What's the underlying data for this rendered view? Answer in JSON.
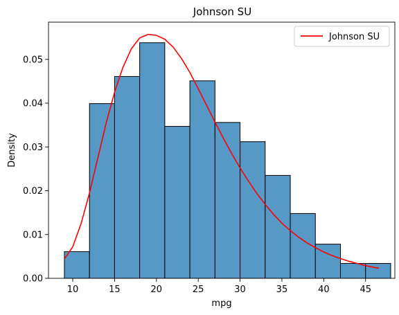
{
  "chart_data": {
    "type": "histogram",
    "title": "Johnson SU",
    "xlabel": "mpg",
    "ylabel": "Density",
    "xlim": [
      7.1,
      48.5
    ],
    "ylim": [
      0,
      0.0585
    ],
    "xticks": [
      10,
      15,
      20,
      25,
      30,
      35,
      40,
      45
    ],
    "yticks": [
      0.0,
      0.01,
      0.02,
      0.03,
      0.04,
      0.05
    ],
    "ytick_labels": [
      "0.00",
      "0.01",
      "0.02",
      "0.03",
      "0.04",
      "0.05"
    ],
    "bins": [
      {
        "x0": 9.0,
        "x1": 12.0,
        "value": 0.0061
      },
      {
        "x0": 12.0,
        "x1": 15.0,
        "value": 0.0399
      },
      {
        "x0": 15.0,
        "x1": 18.0,
        "value": 0.0461
      },
      {
        "x0": 18.0,
        "x1": 21.0,
        "value": 0.0538
      },
      {
        "x0": 21.0,
        "x1": 24.0,
        "value": 0.0347
      },
      {
        "x0": 24.0,
        "x1": 27.0,
        "value": 0.0451
      },
      {
        "x0": 27.0,
        "x1": 30.0,
        "value": 0.0356
      },
      {
        "x0": 30.0,
        "x1": 33.0,
        "value": 0.0312
      },
      {
        "x0": 33.0,
        "x1": 36.0,
        "value": 0.0235
      },
      {
        "x0": 36.0,
        "x1": 39.0,
        "value": 0.0148
      },
      {
        "x0": 39.0,
        "x1": 42.0,
        "value": 0.0078
      },
      {
        "x0": 42.0,
        "x1": 45.0,
        "value": 0.0034
      },
      {
        "x0": 45.0,
        "x1": 48.0,
        "value": 0.0034
      }
    ],
    "curve": {
      "name": "Johnson SU",
      "color": "#ff0000",
      "x": [
        9,
        10,
        11,
        12,
        13,
        14,
        15,
        16,
        17,
        18,
        19,
        20,
        21,
        22,
        23,
        24,
        25,
        26,
        27,
        28,
        29,
        30,
        31,
        32,
        33,
        34,
        35,
        36,
        37,
        38,
        39,
        40,
        41,
        42,
        43,
        44,
        45,
        46,
        46.6
      ],
      "y": [
        0.0044,
        0.0072,
        0.0125,
        0.0195,
        0.0275,
        0.0355,
        0.0425,
        0.0482,
        0.0524,
        0.0549,
        0.0557,
        0.0555,
        0.0546,
        0.0528,
        0.0502,
        0.047,
        0.0433,
        0.0395,
        0.0357,
        0.032,
        0.0285,
        0.0252,
        0.0222,
        0.0194,
        0.0169,
        0.0146,
        0.0126,
        0.0109,
        0.0094,
        0.0081,
        0.007,
        0.006,
        0.0052,
        0.0045,
        0.0039,
        0.0034,
        0.0029,
        0.0025,
        0.0023
      ]
    },
    "bar_color": "#5698c6",
    "legend": {
      "position": "top-right",
      "entries": [
        "Johnson SU"
      ]
    }
  }
}
